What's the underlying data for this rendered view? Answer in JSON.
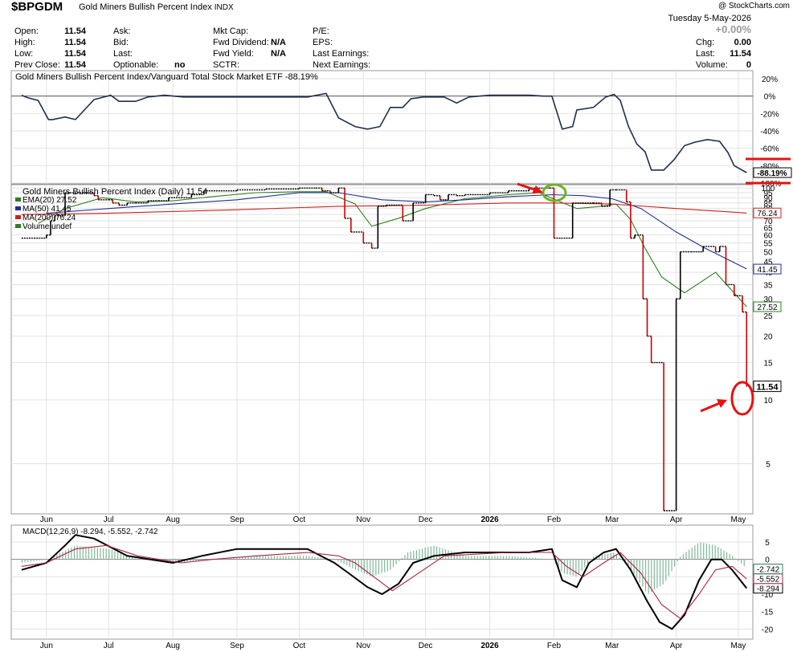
{
  "header": {
    "symbol": "$BPGDM",
    "name": "Gold Miners Bullish Percent Index",
    "exchange": "INDX",
    "watermark": "@ StockCharts.com",
    "date": "Tuesday  5-May-2026",
    "change_pct": "+0.00%",
    "quote": {
      "open_label": "Open:",
      "open": "11.54",
      "high_label": "High:",
      "high": "11.54",
      "low_label": "Low:",
      "low": "11.54",
      "prev_close_label": "Prev Close:",
      "prev_close": "11.54",
      "ask_label": "Ask:",
      "bid_label": "Bid:",
      "last_label": "Last:",
      "optionable_label": "Optionable:",
      "optionable": "no",
      "mktcap_label": "Mkt Cap:",
      "fwd_div_label": "Fwd Dividend:",
      "fwd_div": "N/A",
      "fwd_yield_label": "Fwd Yield:",
      "fwd_yield": "N/A",
      "sctr_label": "SCTR:",
      "pe_label": "P/E:",
      "eps_label": "EPS:",
      "last_earn_label": "Last Earnings:",
      "next_earn_label": "Next Earnings:",
      "chg_label": "Chg:",
      "chg": "0.00",
      "last2_label": "Last:",
      "last2": "11.54",
      "volume_label": "Volume:",
      "volume": "0"
    }
  },
  "colors": {
    "price": "#000000",
    "price_down": "#cc0000",
    "ratio_line": "#1f2f4f",
    "ema20": "#2e7d1e",
    "ma50": "#1f2f8f",
    "ma200": "#cc2222",
    "macd": "#000000",
    "signal": "#aa2244",
    "hist": "#7fb89a",
    "annotation_red": "#e81010",
    "annotation_green": "#6db31f",
    "grid": "#e2e2e2"
  },
  "chart_data": [
    {
      "type": "line",
      "panel": "ratio",
      "title": "Gold Miners Bullish Percent Index/Vanguard Total Stock Market ETF -88.19%",
      "last_value_label": "-88.19%",
      "yticks": [
        "20%",
        "0%",
        "-20%",
        "-40%",
        "-60%",
        "-80%",
        "-100%"
      ],
      "ylim": [
        -100,
        20
      ],
      "x": [
        "2025-05-20",
        "2025-05-23",
        "2025-05-28",
        "2025-06-02",
        "2025-06-04",
        "2025-06-10",
        "2025-06-15",
        "2025-06-24",
        "2025-07-02",
        "2025-07-06",
        "2025-07-14",
        "2025-07-20",
        "2025-07-28",
        "2025-08-06",
        "2025-08-20",
        "2025-09-03",
        "2025-09-20",
        "2025-10-05",
        "2025-10-14",
        "2025-10-20",
        "2025-10-28",
        "2025-11-03",
        "2025-11-09",
        "2025-11-14",
        "2025-11-20",
        "2025-11-24",
        "2025-11-30",
        "2025-12-10",
        "2025-12-16",
        "2025-12-22",
        "2026-01-01",
        "2026-01-10",
        "2026-01-20",
        "2026-01-27",
        "2026-01-31",
        "2026-02-05",
        "2026-02-10",
        "2026-02-12",
        "2026-02-20",
        "2026-02-26",
        "2026-03-02",
        "2026-03-05",
        "2026-03-09",
        "2026-03-13",
        "2026-03-17",
        "2026-03-20",
        "2026-03-26",
        "2026-03-31",
        "2026-04-05",
        "2026-04-10",
        "2026-04-16",
        "2026-04-22",
        "2026-04-26",
        "2026-04-29",
        "2026-05-05"
      ],
      "values": [
        1,
        -2,
        -5,
        -27,
        -27,
        -24,
        -27,
        -4,
        1,
        -6,
        -6,
        -1,
        1,
        -1,
        -1,
        -1,
        -1,
        -1,
        3,
        -25,
        -35,
        -38,
        -35,
        -13,
        -13,
        -3,
        -1,
        -1,
        -8,
        -1,
        1,
        1,
        1,
        0,
        0,
        -38,
        -35,
        -16,
        -13,
        -1,
        2,
        -5,
        -35,
        -55,
        -64,
        -85,
        -85,
        -73,
        -57,
        -53,
        -50,
        -52,
        -65,
        -80,
        -88
      ]
    },
    {
      "type": "line",
      "panel": "price",
      "title": "Gold Miners Bullish Percent Index (Daily) 11.54",
      "scale": "log",
      "series": [
        {
          "name": "EMA(20) 27.52",
          "last": "27.52",
          "x": [
            "2025-05-28",
            "2025-06-10",
            "2025-06-28",
            "2025-07-14",
            "2025-08-01",
            "2025-08-20",
            "2025-09-10",
            "2025-10-01",
            "2025-10-14",
            "2025-10-28",
            "2025-11-05",
            "2025-11-18",
            "2025-12-01",
            "2025-12-20",
            "2026-01-10",
            "2026-01-25",
            "2026-02-03",
            "2026-02-12",
            "2026-02-24",
            "2026-03-03",
            "2026-03-10",
            "2026-03-17",
            "2026-03-25",
            "2026-04-05",
            "2026-04-20",
            "2026-05-05"
          ],
          "values": [
            68,
            80,
            90,
            86,
            87,
            91,
            95,
            96,
            96,
            84,
            66,
            72,
            80,
            89,
            93,
            95,
            87,
            80,
            82,
            84,
            71,
            52,
            38,
            32,
            40,
            27.5
          ]
        },
        {
          "name": "MA(50) 41.45",
          "last": "41.45",
          "x": [
            "2025-06-01",
            "2025-07-01",
            "2025-08-01",
            "2025-09-01",
            "2025-10-01",
            "2025-10-20",
            "2025-11-10",
            "2025-12-01",
            "2025-12-20",
            "2026-01-10",
            "2026-01-31",
            "2026-02-15",
            "2026-03-01",
            "2026-03-15",
            "2026-04-01",
            "2026-04-15",
            "2026-05-05"
          ],
          "values": [
            76,
            80,
            84,
            88,
            95,
            95,
            88,
            86,
            88,
            91,
            93,
            92,
            89,
            80,
            62,
            52,
            41.5
          ]
        },
        {
          "name": "MA(200) 76.24",
          "last": "76.24",
          "x": [
            "2025-05-20",
            "2025-07-01",
            "2025-09-01",
            "2025-10-20",
            "2025-12-01",
            "2026-01-10",
            "2026-02-01",
            "2026-03-01",
            "2026-04-01",
            "2026-05-05"
          ],
          "values": [
            75,
            76,
            79,
            82,
            83,
            85,
            85,
            84,
            80,
            76.2
          ]
        },
        {
          "name": "Volume undef",
          "values": []
        },
        {
          "name": "price",
          "x": [
            "2025-05-20",
            "2025-05-26",
            "2025-06-01",
            "2025-06-03",
            "2025-06-05",
            "2025-06-10",
            "2025-06-24",
            "2025-06-26",
            "2025-07-01",
            "2025-07-03",
            "2025-07-06",
            "2025-07-10",
            "2025-07-14",
            "2025-07-20",
            "2025-07-25",
            "2025-07-30",
            "2025-08-05",
            "2025-08-10",
            "2025-08-16",
            "2025-09-01",
            "2025-09-15",
            "2025-10-01",
            "2025-10-09",
            "2025-10-12",
            "2025-10-16",
            "2025-10-20",
            "2025-10-23",
            "2025-10-26",
            "2025-11-01",
            "2025-11-05",
            "2025-11-08",
            "2025-11-12",
            "2025-11-20",
            "2025-11-25",
            "2025-12-01",
            "2025-12-05",
            "2025-12-08",
            "2025-12-12",
            "2025-12-16",
            "2025-12-20",
            "2026-01-01",
            "2026-01-10",
            "2026-01-20",
            "2026-01-30",
            "2026-02-01",
            "2026-02-08",
            "2026-02-10",
            "2026-02-20",
            "2026-02-24",
            "2026-02-28",
            "2026-03-03",
            "2026-03-08",
            "2026-03-10",
            "2026-03-12",
            "2026-03-16",
            "2026-03-18",
            "2026-03-20",
            "2026-03-26",
            "2026-04-01",
            "2026-04-03",
            "2026-04-08",
            "2026-04-14",
            "2026-04-20",
            "2026-04-22",
            "2026-04-25",
            "2026-04-29",
            "2026-05-03",
            "2026-05-05"
          ],
          "values": [
            58,
            58,
            60,
            70,
            74,
            95,
            92,
            88,
            88,
            85,
            83,
            85,
            85,
            87,
            87,
            90,
            90,
            93,
            97,
            98,
            99,
            100,
            100,
            97,
            95,
            100,
            72,
            62,
            55,
            52,
            82,
            83,
            70,
            85,
            93,
            92,
            88,
            93,
            92,
            93,
            95,
            97,
            100,
            100,
            58,
            58,
            85,
            85,
            82,
            98,
            98,
            86,
            58,
            60,
            30,
            20,
            15,
            3,
            30,
            50,
            50,
            53,
            50,
            53,
            35,
            31,
            26,
            11.54
          ]
        }
      ],
      "yticks": [
        "100",
        "95",
        "90",
        "85",
        "80",
        "75",
        "70",
        "65",
        "60",
        "55",
        "50",
        "45",
        "40",
        "35",
        "30",
        "25",
        "20",
        "15",
        "10",
        "5"
      ],
      "last_value_label": "11.54"
    },
    {
      "type": "line",
      "panel": "macd",
      "title": "MACD(12,26,9) -8.294, -5.552, -2.742",
      "series": [
        {
          "name": "MACD(12,26,9)",
          "last": "-8.294",
          "x": [
            "2025-05-20",
            "2025-06-01",
            "2025-06-10",
            "2025-06-15",
            "2025-06-24",
            "2025-07-10",
            "2025-08-01",
            "2025-08-15",
            "2025-09-01",
            "2025-09-20",
            "2025-10-05",
            "2025-10-18",
            "2025-10-25",
            "2025-11-03",
            "2025-11-10",
            "2025-11-18",
            "2025-11-25",
            "2025-12-05",
            "2025-12-20",
            "2026-01-10",
            "2026-01-20",
            "2026-01-31",
            "2026-02-05",
            "2026-02-12",
            "2026-02-18",
            "2026-02-25",
            "2026-03-03",
            "2026-03-10",
            "2026-03-18",
            "2026-03-24",
            "2026-03-30",
            "2026-04-05",
            "2026-04-12",
            "2026-04-18",
            "2026-04-23",
            "2026-04-28",
            "2026-05-05"
          ],
          "values": [
            -3,
            -1,
            4,
            7,
            6,
            1,
            -1,
            1,
            3,
            3,
            3,
            -1,
            -4,
            -8,
            -10,
            -7,
            -1,
            1,
            2,
            2,
            2,
            3,
            -6,
            -8,
            -1,
            2,
            3,
            -3,
            -12,
            -18,
            -20,
            -16,
            -6,
            0,
            0,
            -3,
            -8.3
          ]
        },
        {
          "name": "Signal",
          "last": "-5.552",
          "x": [
            "2025-05-20",
            "2025-06-01",
            "2025-06-15",
            "2025-06-30",
            "2025-07-15",
            "2025-08-05",
            "2025-08-20",
            "2025-09-10",
            "2025-10-05",
            "2025-10-20",
            "2025-10-28",
            "2025-11-06",
            "2025-11-15",
            "2025-11-25",
            "2025-12-10",
            "2026-01-10",
            "2026-01-31",
            "2026-02-07",
            "2026-02-15",
            "2026-02-25",
            "2026-03-05",
            "2026-03-15",
            "2026-03-25",
            "2026-04-03",
            "2026-04-12",
            "2026-04-20",
            "2026-04-28",
            "2026-05-05"
          ],
          "values": [
            -2,
            -1,
            3,
            4,
            1,
            -1,
            0,
            1,
            2,
            1,
            -1,
            -5,
            -9,
            -5,
            1,
            2,
            2,
            -2,
            -5,
            -1,
            2,
            -4,
            -13,
            -17,
            -10,
            -3,
            -2,
            -5.6
          ]
        },
        {
          "name": "Histogram",
          "last": "-2.742",
          "x": [
            "2025-05-20",
            "2025-06-01",
            "2025-06-15",
            "2025-07-01",
            "2025-07-15",
            "2025-08-01",
            "2025-08-20",
            "2025-09-10",
            "2025-10-05",
            "2025-10-18",
            "2025-10-28",
            "2025-11-05",
            "2025-11-14",
            "2025-11-22",
            "2025-12-05",
            "2025-12-20",
            "2026-01-10",
            "2026-01-31",
            "2026-02-05",
            "2026-02-12",
            "2026-02-20",
            "2026-03-02",
            "2026-03-10",
            "2026-03-18",
            "2026-03-26",
            "2026-04-03",
            "2026-04-12",
            "2026-04-20",
            "2026-04-28",
            "2026-05-05"
          ],
          "values": [
            -1,
            0,
            4,
            3,
            0,
            -1,
            0,
            1,
            1,
            0,
            -3,
            -5,
            -3,
            2,
            4,
            1,
            1,
            0,
            -4,
            -5,
            1,
            2,
            -3,
            -10,
            -7,
            1,
            5,
            4,
            1,
            -2.7
          ]
        }
      ],
      "yticks": [
        "5",
        "0",
        "-5",
        "-10",
        "-15",
        "-20"
      ],
      "ylim": [
        -22,
        8
      ]
    }
  ],
  "x_axis": {
    "labels": [
      "Jun",
      "Jul",
      "Aug",
      "Sep",
      "Oct",
      "Nov",
      "Dec",
      "2026",
      "Feb",
      "Mar",
      "Apr",
      "May"
    ],
    "range": [
      "2025-05-15",
      "2026-05-08"
    ]
  }
}
